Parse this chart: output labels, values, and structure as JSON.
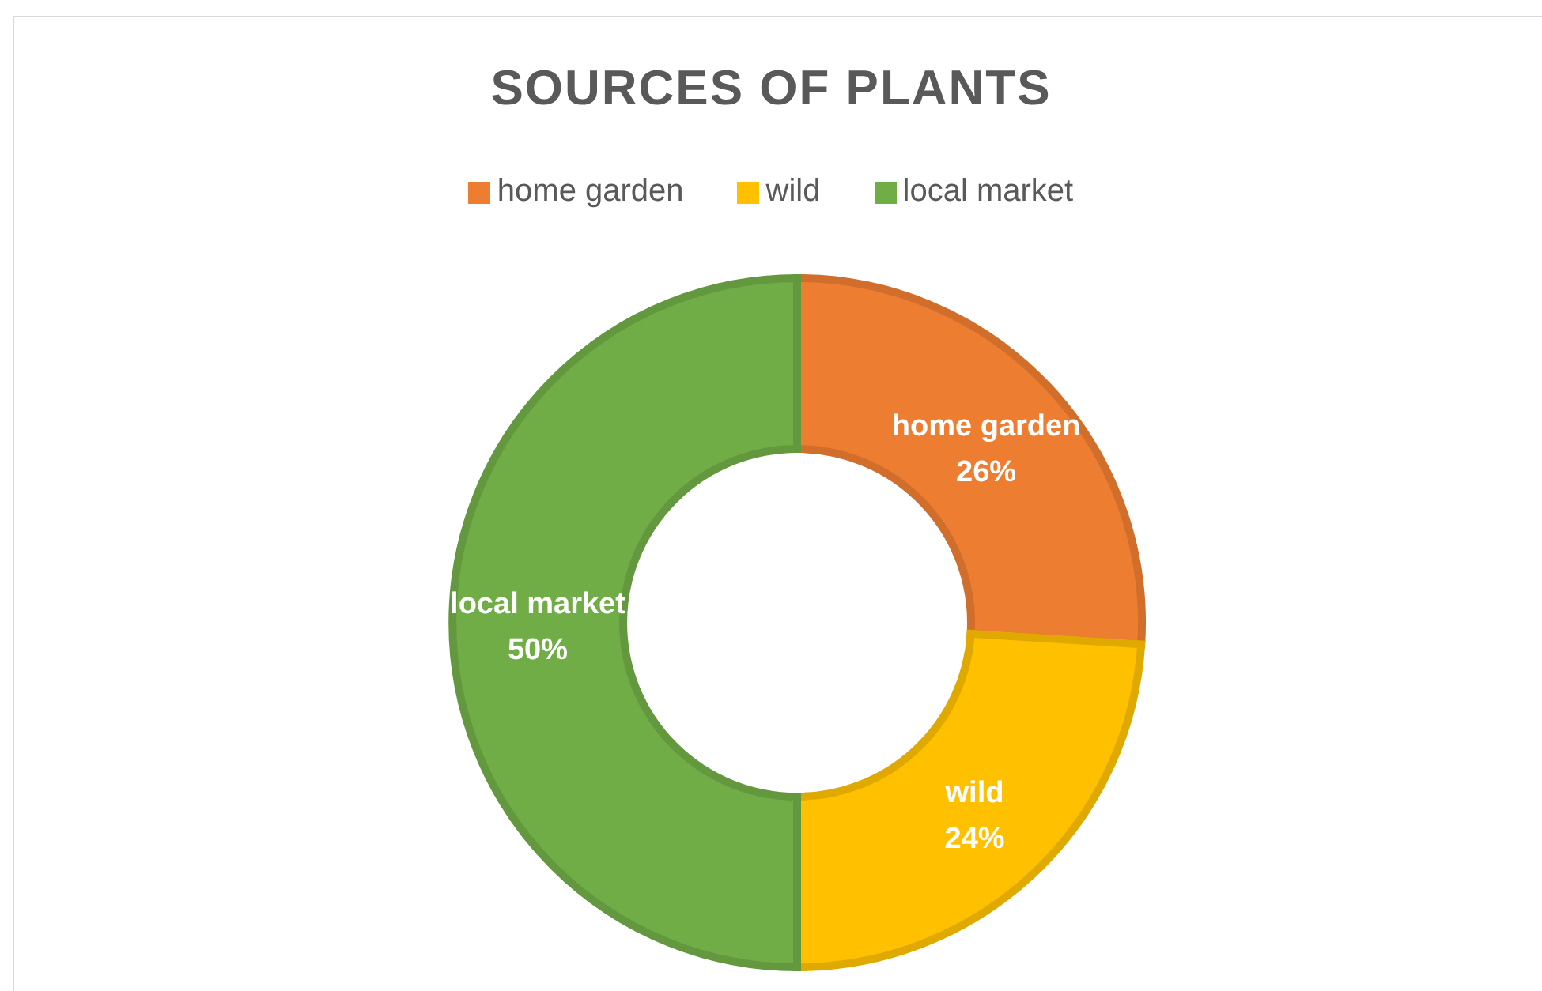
{
  "chart_data": {
    "type": "donut",
    "title": "SOURCES OF PLANTS",
    "categories": [
      "home garden",
      "wild",
      "local market"
    ],
    "values": [
      26,
      24,
      50
    ],
    "colors": [
      "#ed7d31",
      "#ffc000",
      "#70ad47"
    ],
    "value_labels": [
      "26%",
      "24%",
      "50%"
    ],
    "legend": "top"
  }
}
